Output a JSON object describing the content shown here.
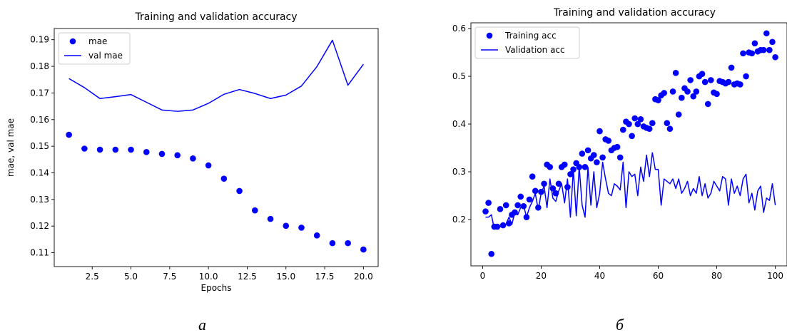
{
  "figure": {
    "label_left": "a",
    "label_right": "б"
  },
  "chart_data": [
    {
      "type": "scatter",
      "title": "Training and validation accuracy",
      "xlabel": "Epochs",
      "ylabel": "mae, val mae",
      "xlim": [
        0.05,
        20.95
      ],
      "ylim": [
        0.1048,
        0.1942
      ],
      "xticks": [
        2.5,
        5.0,
        7.5,
        10.0,
        12.5,
        15.0,
        17.5,
        20.0
      ],
      "xtick_labels": [
        "2.5",
        "5.0",
        "7.5",
        "10.0",
        "12.5",
        "15.0",
        "17.5",
        "20.0"
      ],
      "yticks": [
        0.11,
        0.12,
        0.13,
        0.14,
        0.15,
        0.16,
        0.17,
        0.18,
        0.19
      ],
      "ytick_labels": [
        "0.11",
        "0.12",
        "0.13",
        "0.14",
        "0.15",
        "0.16",
        "0.17",
        "0.18",
        "0.19"
      ],
      "legend_position": "top-left",
      "grid": false,
      "series": [
        {
          "name": "mae",
          "style": "markers",
          "color": "#0000ff",
          "x": [
            1,
            2,
            3,
            4,
            5,
            6,
            7,
            8,
            9,
            10,
            11,
            12,
            13,
            14,
            15,
            16,
            17,
            18,
            19,
            20
          ],
          "y": [
            0.1543,
            0.1491,
            0.1487,
            0.1487,
            0.1487,
            0.1478,
            0.1471,
            0.1466,
            0.1454,
            0.1428,
            0.1378,
            0.1332,
            0.1259,
            0.1227,
            0.1201,
            0.1194,
            0.1165,
            0.1136,
            0.1136,
            0.1112
          ]
        },
        {
          "name": "val mae",
          "style": "line",
          "color": "#0000ff",
          "x": [
            1,
            2,
            3,
            4,
            5,
            6,
            7,
            8,
            9,
            10,
            11,
            12,
            13,
            14,
            15,
            16,
            17,
            18,
            19,
            20
          ],
          "y": [
            0.1754,
            0.172,
            0.1679,
            0.1686,
            0.1694,
            0.1665,
            0.1636,
            0.1631,
            0.1636,
            0.1661,
            0.1695,
            0.1713,
            0.1698,
            0.1679,
            0.1692,
            0.1726,
            0.1799,
            0.1898,
            0.1729,
            0.1808
          ]
        }
      ]
    },
    {
      "type": "scatter",
      "title": "Training and validation accuracy",
      "xlabel": "",
      "ylabel": "",
      "xlim": [
        -4,
        104
      ],
      "ylim": [
        0.103,
        0.612
      ],
      "xticks": [
        0,
        20,
        40,
        60,
        80,
        100
      ],
      "xtick_labels": [
        "0",
        "20",
        "40",
        "60",
        "80",
        "100"
      ],
      "yticks": [
        0.2,
        0.3,
        0.4,
        0.5,
        0.6
      ],
      "ytick_labels": [
        "0.2",
        "0.3",
        "0.4",
        "0.5",
        "0.6"
      ],
      "legend_position": "top-left",
      "grid": false,
      "series": [
        {
          "name": "Training acc",
          "style": "markers",
          "color": "#0000ff",
          "x": [
            1,
            2,
            3,
            4,
            5,
            6,
            7,
            8,
            9,
            10,
            11,
            12,
            13,
            14,
            15,
            16,
            17,
            18,
            19,
            20,
            21,
            22,
            23,
            24,
            25,
            26,
            27,
            28,
            29,
            30,
            31,
            32,
            33,
            34,
            35,
            36,
            37,
            38,
            39,
            40,
            41,
            42,
            43,
            44,
            45,
            46,
            47,
            48,
            49,
            50,
            51,
            52,
            53,
            54,
            55,
            56,
            57,
            58,
            59,
            60,
            61,
            62,
            63,
            64,
            65,
            66,
            67,
            68,
            69,
            70,
            71,
            72,
            73,
            74,
            75,
            76,
            77,
            78,
            79,
            80,
            81,
            82,
            83,
            84,
            85,
            86,
            87,
            88,
            89,
            90,
            91,
            92,
            93,
            94,
            95,
            96,
            97,
            98,
            99,
            100
          ],
          "y": [
            0.217,
            0.235,
            0.128,
            0.185,
            0.185,
            0.222,
            0.188,
            0.23,
            0.192,
            0.21,
            0.215,
            0.23,
            0.248,
            0.228,
            0.205,
            0.242,
            0.29,
            0.26,
            0.225,
            0.258,
            0.275,
            0.315,
            0.31,
            0.265,
            0.255,
            0.275,
            0.31,
            0.315,
            0.268,
            0.295,
            0.305,
            0.318,
            0.31,
            0.338,
            0.31,
            0.345,
            0.328,
            0.335,
            0.32,
            0.385,
            0.33,
            0.368,
            0.365,
            0.345,
            0.35,
            0.352,
            0.33,
            0.388,
            0.405,
            0.4,
            0.375,
            0.412,
            0.4,
            0.41,
            0.395,
            0.392,
            0.39,
            0.402,
            0.452,
            0.45,
            0.46,
            0.465,
            0.402,
            0.39,
            0.468,
            0.507,
            0.42,
            0.455,
            0.475,
            0.468,
            0.492,
            0.458,
            0.468,
            0.5,
            0.505,
            0.488,
            0.442,
            0.492,
            0.466,
            0.463,
            0.49,
            0.488,
            0.485,
            0.488,
            0.518,
            0.483,
            0.485,
            0.483,
            0.548,
            0.5,
            0.55,
            0.548,
            0.569,
            0.552,
            0.555,
            0.555,
            0.59,
            0.555,
            0.572,
            0.54
          ]
        },
        {
          "name": "Validation acc",
          "style": "line",
          "color": "#0000ff",
          "x": [
            1,
            2,
            3,
            4,
            5,
            6,
            7,
            8,
            9,
            10,
            11,
            12,
            13,
            14,
            15,
            16,
            17,
            18,
            19,
            20,
            21,
            22,
            23,
            24,
            25,
            26,
            27,
            28,
            29,
            30,
            31,
            32,
            33,
            34,
            35,
            36,
            37,
            38,
            39,
            40,
            41,
            42,
            43,
            44,
            45,
            46,
            47,
            48,
            49,
            50,
            51,
            52,
            53,
            54,
            55,
            56,
            57,
            58,
            59,
            60,
            61,
            62,
            63,
            64,
            65,
            66,
            67,
            68,
            69,
            70,
            71,
            72,
            73,
            74,
            75,
            76,
            77,
            78,
            79,
            80,
            81,
            82,
            83,
            84,
            85,
            86,
            87,
            88,
            89,
            90,
            91,
            92,
            93,
            94,
            95,
            96,
            97,
            98,
            99,
            100
          ],
          "y": [
            0.205,
            0.205,
            0.21,
            0.18,
            0.188,
            0.185,
            0.185,
            0.19,
            0.205,
            0.19,
            0.215,
            0.21,
            0.225,
            0.23,
            0.205,
            0.225,
            0.238,
            0.255,
            0.22,
            0.255,
            0.27,
            0.225,
            0.285,
            0.245,
            0.238,
            0.26,
            0.275,
            0.235,
            0.285,
            0.205,
            0.305,
            0.208,
            0.31,
            0.23,
            0.205,
            0.31,
            0.23,
            0.3,
            0.225,
            0.255,
            0.32,
            0.285,
            0.255,
            0.25,
            0.275,
            0.27,
            0.262,
            0.32,
            0.225,
            0.3,
            0.29,
            0.295,
            0.25,
            0.31,
            0.28,
            0.335,
            0.29,
            0.34,
            0.305,
            0.305,
            0.23,
            0.285,
            0.28,
            0.275,
            0.285,
            0.265,
            0.285,
            0.255,
            0.265,
            0.28,
            0.25,
            0.265,
            0.255,
            0.29,
            0.25,
            0.275,
            0.245,
            0.255,
            0.28,
            0.27,
            0.26,
            0.29,
            0.285,
            0.23,
            0.285,
            0.255,
            0.27,
            0.25,
            0.285,
            0.295,
            0.235,
            0.255,
            0.22,
            0.26,
            0.27,
            0.215,
            0.245,
            0.24,
            0.275,
            0.23
          ]
        }
      ]
    }
  ]
}
